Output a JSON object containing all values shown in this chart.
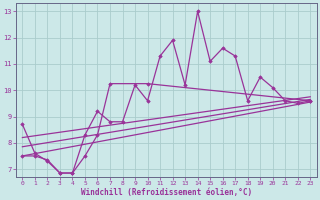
{
  "xlabel": "Windchill (Refroidissement éolien,°C)",
  "background_color": "#cce8e8",
  "grid_color": "#aacccc",
  "line_color": "#993399",
  "tick_color": "#993399",
  "xlim": [
    -0.5,
    23.5
  ],
  "ylim": [
    6.7,
    13.3
  ],
  "yticks": [
    7,
    8,
    9,
    10,
    11,
    12,
    13
  ],
  "xticks": [
    0,
    1,
    2,
    3,
    4,
    5,
    6,
    7,
    8,
    9,
    10,
    11,
    12,
    13,
    14,
    15,
    16,
    17,
    18,
    19,
    20,
    21,
    22,
    23
  ],
  "series1_x": [
    0,
    1,
    2,
    3,
    4,
    5,
    6,
    7,
    8,
    9,
    10,
    11,
    12,
    13,
    14,
    15,
    16,
    17,
    18,
    19,
    20,
    21,
    22,
    23
  ],
  "series1_y": [
    8.7,
    7.6,
    7.3,
    6.85,
    6.85,
    8.3,
    9.2,
    8.8,
    8.8,
    10.2,
    9.6,
    11.3,
    11.9,
    10.2,
    13.0,
    11.1,
    11.6,
    11.3,
    9.6,
    10.5,
    10.1,
    9.6,
    9.5,
    9.6
  ],
  "series2_x": [
    0,
    1,
    2,
    3,
    4,
    5,
    6,
    7,
    10,
    23
  ],
  "series2_y": [
    7.5,
    7.5,
    7.35,
    6.85,
    6.85,
    7.5,
    8.3,
    10.25,
    10.25,
    9.6
  ],
  "series3_x": [
    0,
    23
  ],
  "series3_y": [
    7.5,
    9.55
  ],
  "series4_x": [
    0,
    23
  ],
  "series4_y": [
    7.85,
    9.65
  ],
  "series5_x": [
    0,
    23
  ],
  "series5_y": [
    8.2,
    9.75
  ]
}
